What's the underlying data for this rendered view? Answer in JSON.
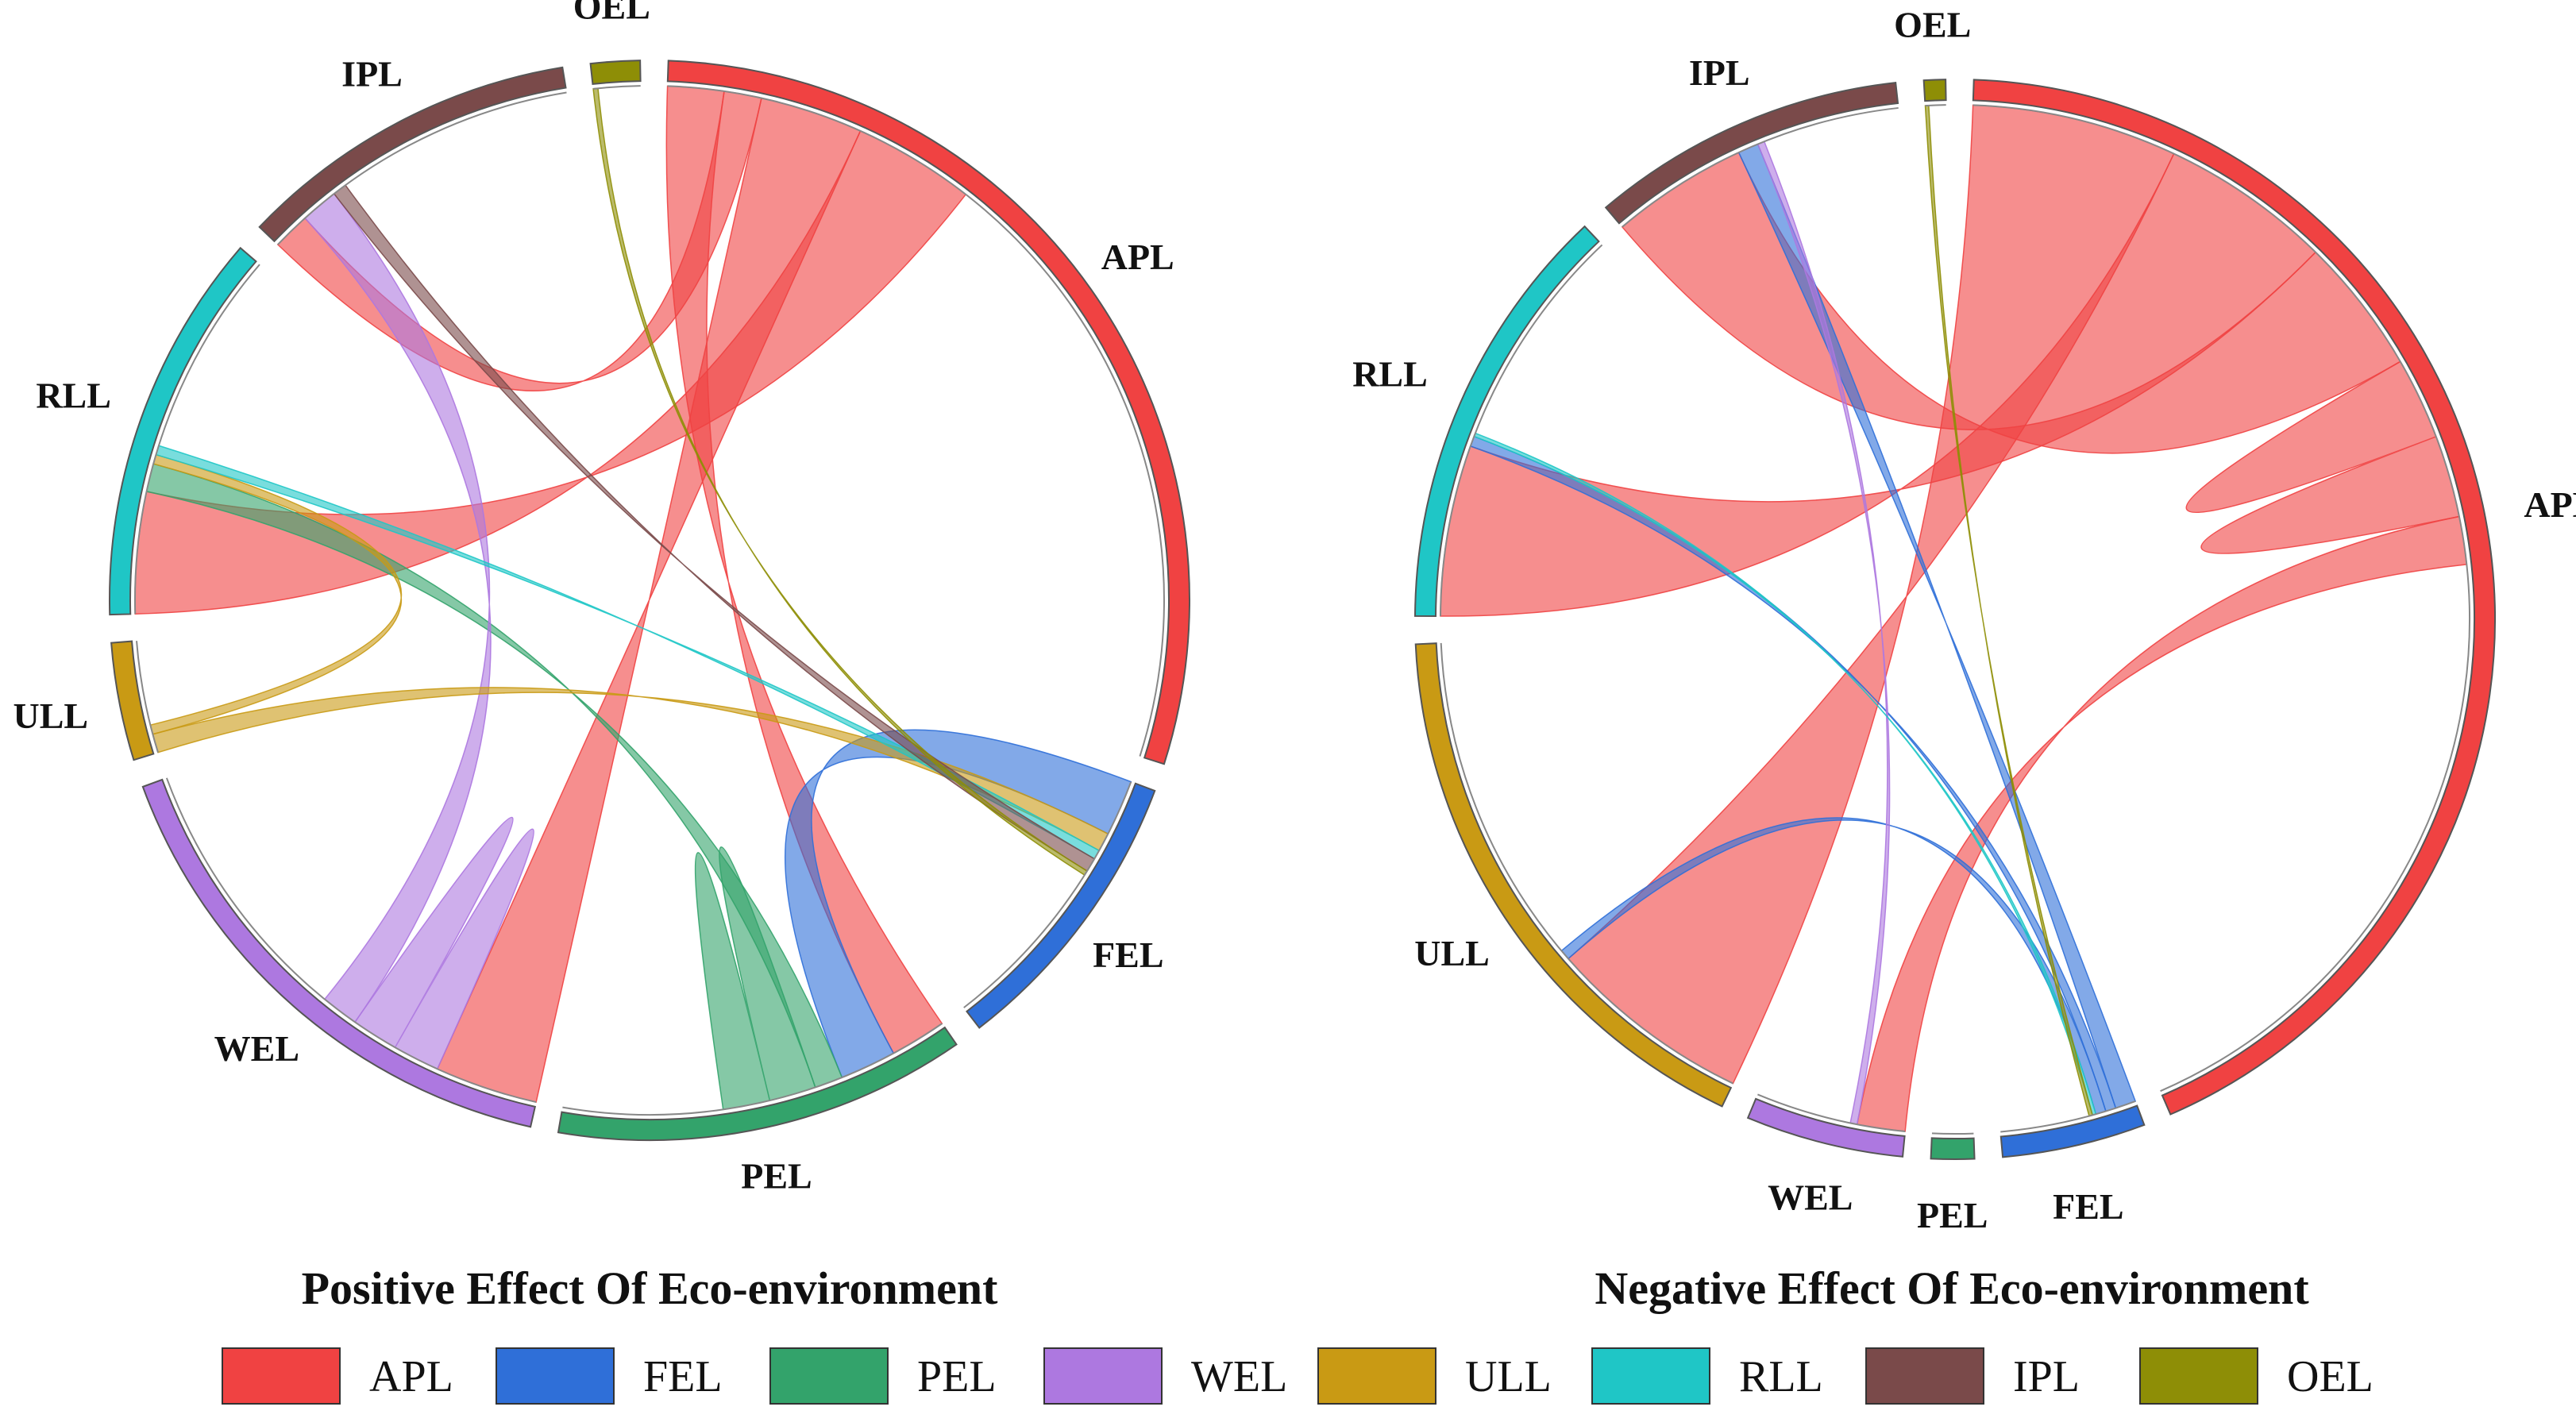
{
  "chart_data": [
    {
      "type": "chord",
      "title": "Positive Effect Of Eco-environment",
      "categories": [
        "APL",
        "FEL",
        "PEL",
        "WEL",
        "ULL",
        "RLL",
        "IPL",
        "OEL"
      ],
      "segments": [
        {
          "name": "APL",
          "value": 100
        },
        {
          "name": "FEL",
          "value": 30
        },
        {
          "name": "PEL",
          "value": 42
        },
        {
          "name": "WEL",
          "value": 54
        },
        {
          "name": "ULL",
          "value": 12
        },
        {
          "name": "RLL",
          "value": 40
        },
        {
          "name": "IPL",
          "value": 35
        },
        {
          "name": "OEL",
          "value": 5
        }
      ],
      "flows": [
        {
          "source": "APL",
          "target": "PEL",
          "value": 12
        },
        {
          "source": "APL",
          "target": "IPL",
          "value": 8
        },
        {
          "source": "APL",
          "target": "WEL",
          "value": 22
        },
        {
          "source": "APL",
          "target": "RLL",
          "value": 26
        },
        {
          "source": "FEL",
          "target": "PEL",
          "value": 12
        },
        {
          "source": "PEL",
          "target": "RLL",
          "value": 6
        },
        {
          "source": "PEL",
          "target": "PEL",
          "value": 10
        },
        {
          "source": "WEL",
          "target": "WEL",
          "value": 10
        },
        {
          "source": "WEL",
          "target": "IPL",
          "value": 8
        },
        {
          "source": "ULL",
          "target": "FEL",
          "value": 4
        },
        {
          "source": "ULL",
          "target": "RLL",
          "value": 2
        },
        {
          "source": "RLL",
          "target": "FEL",
          "value": 2
        },
        {
          "source": "IPL",
          "target": "FEL",
          "value": 3
        },
        {
          "source": "OEL",
          "target": "FEL",
          "value": 1
        }
      ]
    },
    {
      "type": "chord",
      "title": "Negative Effect Of Eco-environment",
      "categories": [
        "APL",
        "FEL",
        "PEL",
        "WEL",
        "ULL",
        "RLL",
        "IPL",
        "OEL"
      ],
      "segments": [
        {
          "name": "APL",
          "value": 200
        },
        {
          "name": "FEL",
          "value": 20
        },
        {
          "name": "PEL",
          "value": 6
        },
        {
          "name": "WEL",
          "value": 22
        },
        {
          "name": "ULL",
          "value": 80
        },
        {
          "name": "RLL",
          "value": 60
        },
        {
          "name": "IPL",
          "value": 44
        },
        {
          "name": "OEL",
          "value": 3
        }
      ],
      "flows": [
        {
          "source": "APL",
          "target": "ULL",
          "value": 60
        },
        {
          "source": "APL",
          "target": "RLL",
          "value": 50
        },
        {
          "source": "APL",
          "target": "IPL",
          "value": 40
        },
        {
          "source": "APL",
          "target": "APL",
          "value": 24
        },
        {
          "source": "APL",
          "target": "WEL",
          "value": 14
        },
        {
          "source": "FEL",
          "target": "IPL",
          "value": 6
        },
        {
          "source": "FEL",
          "target": "RLL",
          "value": 3
        },
        {
          "source": "FEL",
          "target": "ULL",
          "value": 3
        },
        {
          "source": "WEL",
          "target": "IPL",
          "value": 2
        },
        {
          "source": "RLL",
          "target": "FEL",
          "value": 1
        },
        {
          "source": "OEL",
          "target": "FEL",
          "value": 1
        }
      ]
    }
  ],
  "legend": [
    {
      "label": "APL",
      "color": "#f04242"
    },
    {
      "label": "FEL",
      "color": "#2f6fd8"
    },
    {
      "label": "PEL",
      "color": "#33a36b"
    },
    {
      "label": "WEL",
      "color": "#ad78e0"
    },
    {
      "label": "ULL",
      "color": "#c99a14"
    },
    {
      "label": "RLL",
      "color": "#1fc6c6"
    },
    {
      "label": "IPL",
      "color": "#7a4a4a"
    },
    {
      "label": "OEL",
      "color": "#8e8e06"
    }
  ]
}
